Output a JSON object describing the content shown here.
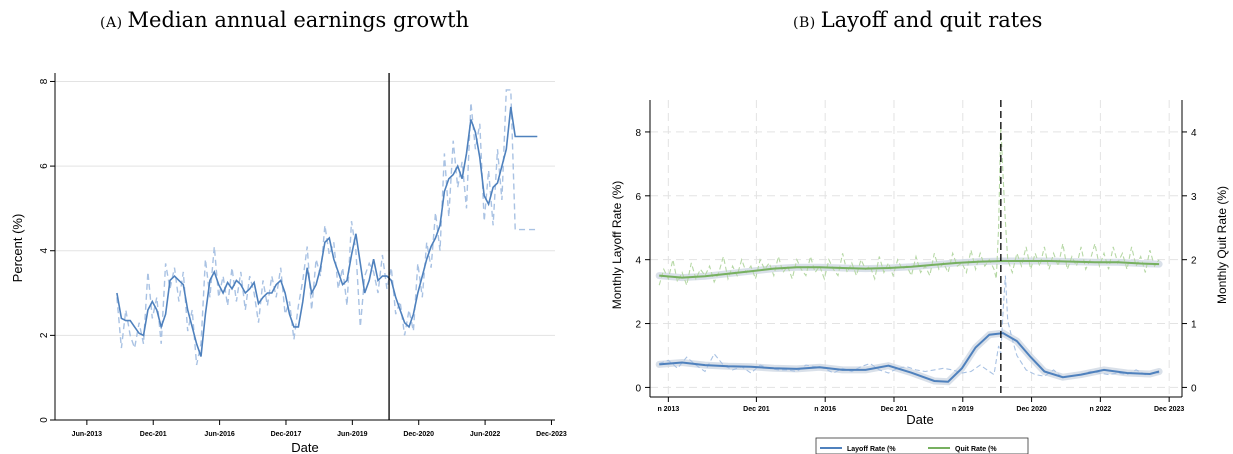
{
  "panels": {
    "a": {
      "label": "(A)",
      "title": "Median annual earnings growth"
    },
    "b": {
      "label": "(B)",
      "title": "Layoff and quit rates"
    }
  },
  "colors": {
    "blue": "#4f81bd",
    "lightblue": "#a9c2e3",
    "green": "#77b060",
    "lightgreen": "#b6d8a5",
    "band": "#cfd8e3",
    "grid": "#e3e3e3"
  },
  "chart_data": [
    {
      "type": "line",
      "title": "",
      "xlabel": "Date",
      "ylabel": "Percent (%)",
      "xlim": [
        2012.7,
        2024.0
      ],
      "ylim": [
        0,
        8.2
      ],
      "ytick_values": [
        0,
        2,
        4,
        6,
        8
      ],
      "ytick_labels": [
        "0",
        "2",
        "4",
        "6",
        "8"
      ],
      "xtick_values": [
        2013.42,
        2014.92,
        2016.42,
        2017.92,
        2019.42,
        2020.92,
        2022.42,
        2023.92
      ],
      "xtick_labels": [
        "Jun-2013",
        "Dec-201",
        "Jun-2016",
        "Dec-2017",
        "Jun-2019",
        "Dec-2020",
        "Jun-2022",
        "Dec-2023"
      ],
      "vline": 2020.25,
      "series": [
        {
          "x": [
            2014.1,
            2014.2,
            2014.3,
            2014.4,
            2014.5,
            2014.6,
            2014.7,
            2014.8,
            2014.9,
            2015.0,
            2015.1,
            2015.2,
            2015.3,
            2015.4,
            2015.5,
            2015.6,
            2015.7,
            2015.8,
            2015.9,
            2016.0,
            2016.1,
            2016.2,
            2016.3,
            2016.4,
            2016.5,
            2016.6,
            2016.7,
            2016.8,
            2016.9,
            2017.0,
            2017.1,
            2017.2,
            2017.3,
            2017.4,
            2017.5,
            2017.6,
            2017.7,
            2017.8,
            2017.9,
            2018.0,
            2018.1,
            2018.2,
            2018.3,
            2018.4,
            2018.5,
            2018.6,
            2018.7,
            2018.8,
            2018.9,
            2019.0,
            2019.1,
            2019.2,
            2019.3,
            2019.4,
            2019.5,
            2019.6,
            2019.7,
            2019.8,
            2019.9,
            2020.0,
            2020.1,
            2020.2,
            2020.3,
            2020.4,
            2020.5,
            2020.6,
            2020.7,
            2020.8,
            2020.9,
            2021.0,
            2021.1,
            2021.2,
            2021.3,
            2021.4,
            2021.5,
            2021.6,
            2021.7,
            2021.8,
            2021.9,
            2022.0,
            2022.1,
            2022.2,
            2022.3,
            2022.4,
            2022.5,
            2022.6,
            2022.7,
            2022.8,
            2022.9,
            2023.0,
            2023.1,
            2023.2,
            2023.3,
            2023.4,
            2023.5,
            2023.6
          ],
          "values": [
            3.0,
            2.4,
            2.35,
            2.35,
            2.2,
            2.05,
            2.0,
            2.6,
            2.8,
            2.6,
            2.2,
            2.5,
            3.3,
            3.4,
            3.3,
            3.2,
            2.6,
            2.2,
            1.8,
            1.5,
            2.5,
            3.3,
            3.5,
            3.2,
            3.0,
            3.25,
            3.1,
            3.3,
            3.2,
            3.0,
            3.1,
            3.25,
            2.75,
            2.9,
            3.0,
            3.0,
            3.2,
            3.3,
            3.0,
            2.5,
            2.2,
            2.2,
            2.8,
            3.6,
            3.0,
            3.2,
            3.6,
            4.2,
            4.3,
            3.8,
            3.5,
            3.2,
            3.3,
            3.9,
            4.4,
            3.7,
            3.0,
            3.3,
            3.8,
            3.3,
            3.4,
            3.4,
            3.3,
            2.9,
            2.6,
            2.3,
            2.2,
            2.5,
            3.0,
            3.4,
            3.8,
            4.1,
            4.3,
            4.6,
            5.4,
            5.7,
            5.8,
            6.0,
            5.7,
            6.3,
            7.1,
            6.8,
            6.2,
            5.3,
            5.1,
            5.5,
            5.6,
            6.0,
            6.4,
            7.4,
            6.7,
            6.7,
            6.7,
            6.7,
            6.7,
            6.7
          ]
        },
        {
          "x": [
            2014.1,
            2014.2,
            2014.3,
            2014.4,
            2014.5,
            2014.6,
            2014.7,
            2014.8,
            2014.9,
            2015.0,
            2015.1,
            2015.2,
            2015.3,
            2015.4,
            2015.5,
            2015.6,
            2015.7,
            2015.8,
            2015.9,
            2016.0,
            2016.1,
            2016.2,
            2016.3,
            2016.4,
            2016.5,
            2016.6,
            2016.7,
            2016.8,
            2016.9,
            2017.0,
            2017.1,
            2017.2,
            2017.3,
            2017.4,
            2017.5,
            2017.6,
            2017.7,
            2017.8,
            2017.9,
            2018.0,
            2018.1,
            2018.2,
            2018.3,
            2018.4,
            2018.5,
            2018.6,
            2018.7,
            2018.8,
            2018.9,
            2019.0,
            2019.1,
            2019.2,
            2019.3,
            2019.4,
            2019.5,
            2019.6,
            2019.7,
            2019.8,
            2019.9,
            2020.0,
            2020.1,
            2020.2,
            2020.3,
            2020.4,
            2020.5,
            2020.6,
            2020.7,
            2020.8,
            2020.9,
            2021.0,
            2021.1,
            2021.2,
            2021.3,
            2021.4,
            2021.5,
            2021.6,
            2021.7,
            2021.8,
            2021.9,
            2022.0,
            2022.1,
            2022.2,
            2022.3,
            2022.4,
            2022.5,
            2022.6,
            2022.7,
            2022.8,
            2022.9,
            2023.0,
            2023.1,
            2023.2,
            2023.3,
            2023.4,
            2023.5,
            2023.6
          ],
          "values": [
            2.9,
            1.7,
            2.6,
            2.0,
            1.7,
            2.3,
            1.8,
            3.5,
            2.4,
            2.9,
            1.8,
            3.7,
            3.1,
            3.6,
            2.8,
            3.5,
            2.1,
            2.6,
            1.3,
            1.8,
            3.8,
            2.9,
            4.1,
            2.9,
            3.4,
            2.7,
            3.6,
            2.8,
            3.5,
            2.6,
            3.4,
            3.0,
            2.3,
            3.3,
            2.7,
            3.4,
            2.9,
            3.6,
            2.5,
            2.8,
            1.9,
            2.7,
            3.3,
            4.1,
            2.6,
            3.8,
            3.4,
            4.6,
            3.9,
            4.2,
            3.1,
            3.6,
            2.7,
            4.7,
            4.0,
            2.2,
            3.4,
            3.7,
            3.5,
            3.0,
            3.9,
            3.1,
            3.6,
            2.5,
            2.8,
            2.0,
            2.6,
            2.1,
            3.7,
            2.9,
            4.2,
            3.6,
            4.9,
            4.0,
            6.3,
            4.8,
            6.6,
            5.5,
            6.1,
            5.0,
            7.5,
            6.4,
            7.0,
            4.7,
            5.9,
            4.6,
            6.4,
            5.2,
            7.8,
            7.8,
            4.5,
            4.5,
            4.5,
            4.5,
            4.5,
            4.5
          ]
        }
      ]
    },
    {
      "type": "line",
      "title": "",
      "xlabel": "Date",
      "ylabel": "Monthly Layoff Rate (%)",
      "y2label": "Monthly  Quit Rate (%)",
      "xlim": [
        2012.6,
        2024.2
      ],
      "ylim": [
        -0.3,
        9.0
      ],
      "y2lim": [
        -0.15,
        4.5
      ],
      "ytick_values": [
        0,
        2,
        4,
        6,
        8
      ],
      "ytick_labels": [
        "0",
        "2",
        "4",
        "6",
        "8"
      ],
      "y2tick_values": [
        0,
        1,
        2,
        3,
        4
      ],
      "y2tick_labels": [
        "0",
        "1",
        "2",
        "3",
        "4"
      ],
      "xtick_values": [
        2013.0,
        2014.92,
        2016.42,
        2017.92,
        2019.42,
        2020.92,
        2022.42,
        2023.92
      ],
      "xtick_labels": [
        "n 2013",
        "Dec 201",
        "n 2016",
        "Dec 201",
        "n 2019",
        "Dec 2020",
        "n 2022",
        "Dec 2023"
      ],
      "vline": 2020.25,
      "legend": [
        "Layoff Rate (%",
        "Quit Rate (%"
      ],
      "legend_position": "bottom",
      "series": [
        {
          "name": "Layoff Rate (%",
          "x": [
            2012.8,
            2013.3,
            2013.8,
            2014.3,
            2014.8,
            2015.3,
            2015.8,
            2016.3,
            2016.8,
            2017.3,
            2017.8,
            2018.3,
            2018.8,
            2019.1,
            2019.4,
            2019.7,
            2020.0,
            2020.3,
            2020.6,
            2020.9,
            2021.2,
            2021.6,
            2022.0,
            2022.5,
            2023.0,
            2023.5,
            2023.7
          ],
          "values": [
            0.72,
            0.78,
            0.7,
            0.66,
            0.65,
            0.6,
            0.58,
            0.63,
            0.55,
            0.55,
            0.68,
            0.46,
            0.2,
            0.18,
            0.6,
            1.25,
            1.65,
            1.7,
            1.45,
            0.95,
            0.5,
            0.32,
            0.4,
            0.55,
            0.45,
            0.42,
            0.5
          ]
        },
        {
          "name": "layoff-raw",
          "x": [
            2012.8,
            2013.0,
            2013.2,
            2013.4,
            2013.6,
            2013.8,
            2014.0,
            2014.2,
            2014.4,
            2014.6,
            2014.8,
            2015.0,
            2015.2,
            2015.4,
            2015.6,
            2015.8,
            2016.0,
            2016.2,
            2016.4,
            2016.6,
            2016.8,
            2017.0,
            2017.2,
            2017.4,
            2017.6,
            2017.8,
            2018.0,
            2018.2,
            2018.4,
            2018.6,
            2018.8,
            2019.0,
            2019.2,
            2019.4,
            2019.6,
            2019.8,
            2020.0,
            2020.1,
            2020.2,
            2020.25,
            2020.3,
            2020.35,
            2020.4,
            2020.5,
            2020.6,
            2020.8,
            2021.0,
            2021.2,
            2021.4,
            2021.6,
            2021.8,
            2022.0,
            2022.2,
            2022.4,
            2022.6,
            2022.8,
            2023.0,
            2023.2,
            2023.4,
            2023.6,
            2023.7
          ],
          "values": [
            0.75,
            0.85,
            0.6,
            0.95,
            0.7,
            0.5,
            1.05,
            0.7,
            0.55,
            0.65,
            0.45,
            0.7,
            0.6,
            0.55,
            0.55,
            0.5,
            0.7,
            0.65,
            0.6,
            0.45,
            0.6,
            0.5,
            0.65,
            0.75,
            0.55,
            0.45,
            0.6,
            0.65,
            0.55,
            0.5,
            0.55,
            0.6,
            0.55,
            0.45,
            0.5,
            0.7,
            0.5,
            0.4,
            1.3,
            1.05,
            2.4,
            3.5,
            2.1,
            1.5,
            1.0,
            0.55,
            0.4,
            0.35,
            0.55,
            0.3,
            0.35,
            0.4,
            0.5,
            0.45,
            0.4,
            0.45,
            0.4,
            0.55,
            0.4,
            0.45,
            0.45
          ]
        },
        {
          "name": "Quit Rate (%",
          "axis": "y2",
          "x": [
            2012.8,
            2013.3,
            2013.8,
            2014.3,
            2014.8,
            2015.3,
            2015.8,
            2016.3,
            2016.8,
            2017.3,
            2017.8,
            2018.3,
            2018.8,
            2019.3,
            2019.8,
            2020.3,
            2020.8,
            2021.3,
            2021.8,
            2022.3,
            2022.8,
            2023.3,
            2023.7
          ],
          "values": [
            1.75,
            1.72,
            1.74,
            1.78,
            1.82,
            1.86,
            1.88,
            1.88,
            1.87,
            1.86,
            1.87,
            1.89,
            1.92,
            1.95,
            1.97,
            1.98,
            1.98,
            1.98,
            1.97,
            1.96,
            1.96,
            1.94,
            1.93
          ]
        },
        {
          "name": "quit-raw",
          "axis": "y2",
          "x": [
            2012.8,
            2012.9,
            2013.0,
            2013.1,
            2013.2,
            2013.3,
            2013.4,
            2013.5,
            2013.6,
            2013.7,
            2013.8,
            2013.9,
            2014.0,
            2014.1,
            2014.2,
            2014.3,
            2014.4,
            2014.5,
            2014.6,
            2014.7,
            2014.8,
            2014.9,
            2015.0,
            2015.1,
            2015.2,
            2015.3,
            2015.4,
            2015.5,
            2015.6,
            2015.7,
            2015.8,
            2015.9,
            2016.0,
            2016.1,
            2016.2,
            2016.3,
            2016.4,
            2016.5,
            2016.6,
            2016.7,
            2016.8,
            2016.9,
            2017.0,
            2017.1,
            2017.2,
            2017.3,
            2017.4,
            2017.5,
            2017.6,
            2017.7,
            2017.8,
            2017.9,
            2018.0,
            2018.1,
            2018.2,
            2018.3,
            2018.4,
            2018.5,
            2018.6,
            2018.7,
            2018.8,
            2018.9,
            2019.0,
            2019.1,
            2019.2,
            2019.3,
            2019.4,
            2019.5,
            2019.6,
            2019.7,
            2019.8,
            2019.9,
            2020.0,
            2020.1,
            2020.15,
            2020.2,
            2020.25,
            2020.3,
            2020.35,
            2020.4,
            2020.5,
            2020.6,
            2020.7,
            2020.8,
            2020.9,
            2021.0,
            2021.1,
            2021.2,
            2021.3,
            2021.4,
            2021.5,
            2021.6,
            2021.7,
            2021.8,
            2021.9,
            2022.0,
            2022.1,
            2022.2,
            2022.3,
            2022.4,
            2022.5,
            2022.6,
            2022.7,
            2022.8,
            2022.9,
            2023.0,
            2023.1,
            2023.2,
            2023.3,
            2023.4,
            2023.5,
            2023.6,
            2023.7
          ],
          "values": [
            1.6,
            1.85,
            1.7,
            2.0,
            1.65,
            1.8,
            1.6,
            1.95,
            1.7,
            1.85,
            1.75,
            1.9,
            1.65,
            1.8,
            2.05,
            1.7,
            1.9,
            1.75,
            2.0,
            1.8,
            1.9,
            1.7,
            2.0,
            1.85,
            1.95,
            1.75,
            2.05,
            1.8,
            1.9,
            1.7,
            2.0,
            1.85,
            1.75,
            2.05,
            1.8,
            1.9,
            1.7,
            2.0,
            1.85,
            1.75,
            2.1,
            1.8,
            1.95,
            1.75,
            2.0,
            1.85,
            1.9,
            1.7,
            2.05,
            1.8,
            1.95,
            1.75,
            2.0,
            1.85,
            1.9,
            1.75,
            2.05,
            1.8,
            1.9,
            1.75,
            2.1,
            1.85,
            1.95,
            1.8,
            2.1,
            1.9,
            1.95,
            1.8,
            2.15,
            1.85,
            2.1,
            1.9,
            2.0,
            1.85,
            1.7,
            2.5,
            4.1,
            3.3,
            2.6,
            2.0,
            1.8,
            2.1,
            1.9,
            2.2,
            1.85,
            2.1,
            1.9,
            2.2,
            1.85,
            2.1,
            1.9,
            2.25,
            1.85,
            2.05,
            1.9,
            2.2,
            1.85,
            2.0,
            2.25,
            1.9,
            2.1,
            1.85,
            2.2,
            1.95,
            2.1,
            1.85,
            2.2,
            1.9,
            2.05,
            1.8,
            2.15,
            1.9,
            2.0
          ]
        }
      ]
    }
  ]
}
